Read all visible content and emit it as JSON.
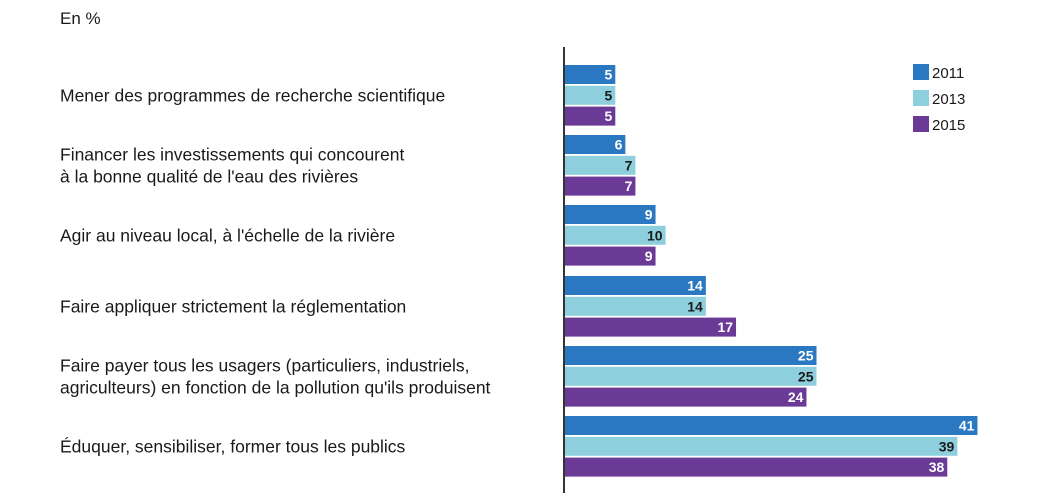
{
  "unit_label": "En %",
  "chart_data": {
    "type": "bar",
    "orientation": "horizontal",
    "title": "",
    "xlabel": "",
    "ylabel": "",
    "unit": "En %",
    "categories": [
      [
        "Mener des programmes de recherche scientifique"
      ],
      [
        "Financer les investissements qui concourent",
        "à la bonne qualité de l'eau des rivières"
      ],
      [
        "Agir au niveau local, à l'échelle de la rivière"
      ],
      [
        "Faire appliquer strictement la réglementation"
      ],
      [
        "Faire payer tous les usagers (particuliers, industriels,",
        "agriculteurs) en fonction de la pollution qu'ils produisent"
      ],
      [
        "Éduquer, sensibiliser, former tous les publics"
      ]
    ],
    "series": [
      {
        "name": "2011",
        "color": "#2a78c2",
        "label_color": "#ffffff",
        "values": [
          5,
          6,
          9,
          14,
          25,
          41
        ]
      },
      {
        "name": "2013",
        "color": "#8ecfdd",
        "label_color": "#1a1a1a",
        "values": [
          5,
          7,
          10,
          14,
          25,
          39
        ]
      },
      {
        "name": "2015",
        "color": "#6b3a96",
        "label_color": "#ffffff",
        "values": [
          5,
          7,
          9,
          17,
          24,
          38
        ]
      }
    ],
    "legend_position": "top-right",
    "grid": false,
    "xlim": [
      0,
      41
    ]
  }
}
